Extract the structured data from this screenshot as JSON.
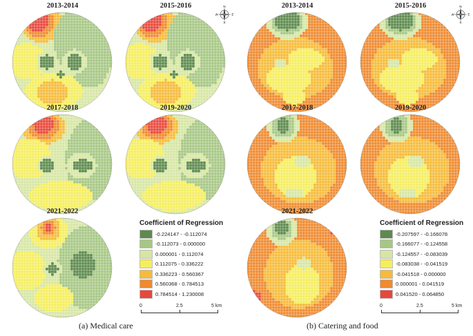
{
  "colors": {
    "outer_ring": "#2a1f1a",
    "grid_line": "#ffffff"
  },
  "left_panel": {
    "maps": [
      {
        "title": "2013-2014",
        "scenario": "med-a"
      },
      {
        "title": "2015-2016",
        "scenario": "med-a"
      },
      {
        "title": "2017-2018",
        "scenario": "med-b"
      },
      {
        "title": "2019-2020",
        "scenario": "med-b"
      },
      {
        "title": "2021-2022",
        "scenario": "med-c"
      }
    ],
    "legend": {
      "title": "Coefficient of Regression",
      "items": [
        {
          "label": "-0.224147 - -0.112074",
          "color": "#5e8a4d"
        },
        {
          "label": "-0.112073 - 0.000000",
          "color": "#a6c784"
        },
        {
          "label": "0.000001 - 0.112074",
          "color": "#d6e6a2"
        },
        {
          "label": "0.112075 - 0.336222",
          "color": "#f5ee5c"
        },
        {
          "label": "0.336223 - 0.560367",
          "color": "#f6bb38"
        },
        {
          "label": "0.560368 - 0.784513",
          "color": "#ef8a2f"
        },
        {
          "label": "0.784514 - 1.230008",
          "color": "#e8473a"
        }
      ]
    },
    "scale": {
      "labels": [
        "0",
        "2.5",
        "5 km"
      ]
    },
    "caption": "(a) Medical care"
  },
  "right_panel": {
    "maps": [
      {
        "title": "2013-2014",
        "scenario": "cat-a"
      },
      {
        "title": "2015-2016",
        "scenario": "cat-a"
      },
      {
        "title": "2017-2018",
        "scenario": "cat-b"
      },
      {
        "title": "2019-2020",
        "scenario": "cat-b"
      },
      {
        "title": "2021-2022",
        "scenario": "cat-c"
      }
    ],
    "legend": {
      "title": "Coefficient of Regression",
      "items": [
        {
          "label": "-0.207597 - -0.166078",
          "color": "#5e8a4d"
        },
        {
          "label": "-0.166077 - -0.124558",
          "color": "#a6c784"
        },
        {
          "label": "-0.124557 - -0.083039",
          "color": "#d6e6a2"
        },
        {
          "label": "-0.083038 - -0.041519",
          "color": "#f5ee5c"
        },
        {
          "label": "-0.041518 - 0.000000",
          "color": "#f6bb38"
        },
        {
          "label": "0.000001 - 0.041519",
          "color": "#ef8a2f"
        },
        {
          "label": "0.041520 - 0.064850",
          "color": "#e8473a"
        }
      ]
    },
    "scale": {
      "labels": [
        "0",
        "2.5",
        "5 km"
      ]
    },
    "caption": "(b) Catering and food"
  },
  "compass": {
    "n": "N",
    "s": "S",
    "e": "E",
    "w": "W"
  }
}
